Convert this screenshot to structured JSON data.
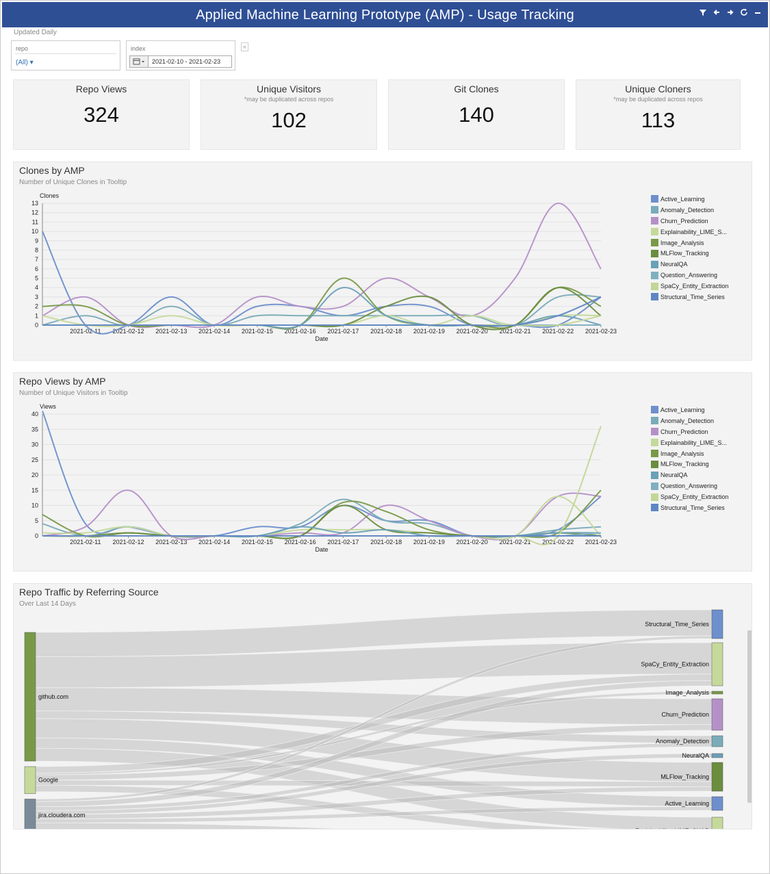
{
  "header": {
    "title": "Applied Machine Learning Prototype (AMP) - Usage Tracking"
  },
  "updated_note": "Updated Daily",
  "filters": {
    "repo": {
      "label": "repo",
      "value": "(All)"
    },
    "index": {
      "label": "index",
      "value": "2021-02-10 - 2021-02-23"
    }
  },
  "kpis": [
    {
      "title": "Repo Views",
      "subtitle": "",
      "value": "324"
    },
    {
      "title": "Unique Visitors",
      "subtitle": "*may be duplicated across repos",
      "value": "102"
    },
    {
      "title": "Git Clones",
      "subtitle": "",
      "value": "140"
    },
    {
      "title": "Unique Cloners",
      "subtitle": "*may be duplicated across repos",
      "value": "113"
    }
  ],
  "colors": {
    "Active_Learning": "#6d8fcc",
    "Anomaly_Detection": "#7aabb9",
    "Churn_Prediction": "#b590c8",
    "Explainability": "#c5d99a",
    "Image_Analysis": "#789a48",
    "MLFlow_Tracking": "#6a8d3e",
    "NeuralQA": "#6aa0b8",
    "Question_Answering": "#80b0c0",
    "SpaCy_Entity_Extraction": "#c2d696",
    "Structural_Time_Series": "#5f86c4"
  },
  "legend": [
    {
      "key": "Active_Learning",
      "label": "Active_Learning"
    },
    {
      "key": "Anomaly_Detection",
      "label": "Anomaly_Detection"
    },
    {
      "key": "Churn_Prediction",
      "label": "Churn_Prediction"
    },
    {
      "key": "Explainability",
      "label": "Explainability_LIME_S..."
    },
    {
      "key": "Image_Analysis",
      "label": "Image_Analysis"
    },
    {
      "key": "MLFlow_Tracking",
      "label": "MLFlow_Tracking"
    },
    {
      "key": "NeuralQA",
      "label": "NeuralQA"
    },
    {
      "key": "Question_Answering",
      "label": "Question_Answering"
    },
    {
      "key": "SpaCy_Entity_Extraction",
      "label": "SpaCy_Entity_Extraction"
    },
    {
      "key": "Structural_Time_Series",
      "label": "Structural_Time_Series"
    }
  ],
  "chart_data": [
    {
      "type": "line",
      "title": "Clones by AMP",
      "subtitle": "Number of Unique Clones in Tooltip",
      "xlabel": "Date",
      "ylabel": "Clones",
      "ylim": [
        0,
        13
      ],
      "yticks": [
        0,
        1,
        2,
        3,
        4,
        5,
        6,
        7,
        8,
        9,
        10,
        11,
        12,
        13
      ],
      "x": [
        "2021-02-10",
        "2021-02-11",
        "2021-02-12",
        "2021-02-13",
        "2021-02-14",
        "2021-02-15",
        "2021-02-16",
        "2021-02-17",
        "2021-02-18",
        "2021-02-19",
        "2021-02-20",
        "2021-02-21",
        "2021-02-22",
        "2021-02-23"
      ],
      "xticklabels": [
        "2021-02-11",
        "2021-02-12",
        "2021-02-13",
        "2021-02-14",
        "2021-02-15",
        "2021-02-16",
        "2021-02-17",
        "2021-02-18",
        "2021-02-19",
        "2021-02-20",
        "2021-02-21",
        "2021-02-22",
        "2021-02-23"
      ],
      "series": [
        {
          "name": "Active_Learning",
          "values": [
            10,
            0,
            0,
            3,
            0,
            2,
            2,
            1,
            2,
            2,
            0,
            0,
            0,
            3
          ]
        },
        {
          "name": "Anomaly_Detection",
          "values": [
            0,
            1,
            0,
            2,
            0,
            1,
            1,
            1,
            1,
            1,
            1,
            0,
            3,
            3
          ]
        },
        {
          "name": "Churn_Prediction",
          "values": [
            1,
            3,
            0,
            0,
            0,
            3,
            2,
            2,
            5,
            3,
            1,
            5,
            13,
            6
          ]
        },
        {
          "name": "Explainability",
          "values": [
            1,
            0,
            0,
            1,
            0,
            0,
            0,
            0,
            1,
            0,
            1,
            0,
            1,
            1
          ]
        },
        {
          "name": "Image_Analysis",
          "values": [
            2,
            2,
            0,
            0,
            0,
            0,
            0,
            5,
            1,
            0,
            0,
            0,
            4,
            2
          ]
        },
        {
          "name": "MLFlow_Tracking",
          "values": [
            0,
            0,
            0,
            0,
            0,
            0,
            0,
            0,
            2,
            3,
            0,
            0,
            4,
            1
          ]
        },
        {
          "name": "NeuralQA",
          "values": [
            0,
            0,
            0,
            0,
            0,
            0,
            0,
            4,
            1,
            0,
            0,
            0,
            1,
            0
          ]
        },
        {
          "name": "Question_Answering",
          "values": [
            0,
            0,
            0,
            0,
            0,
            0,
            0,
            0,
            0,
            0,
            0,
            0,
            0,
            0
          ]
        },
        {
          "name": "SpaCy_Entity_Extraction",
          "values": [
            0,
            0,
            0,
            0,
            0,
            0,
            0,
            0,
            0,
            0,
            0,
            0,
            0,
            1
          ]
        },
        {
          "name": "Structural_Time_Series",
          "values": [
            0,
            0,
            0,
            0,
            0,
            0,
            0,
            0,
            0,
            0,
            0,
            0,
            1,
            3
          ]
        }
      ]
    },
    {
      "type": "line",
      "title": "Repo Views by AMP",
      "subtitle": "Number of Unique Visitors in Tooltip",
      "xlabel": "Date",
      "ylabel": "Views",
      "ylim": [
        0,
        40
      ],
      "yticks": [
        0,
        5,
        10,
        15,
        20,
        25,
        30,
        35,
        40
      ],
      "x": [
        "2021-02-10",
        "2021-02-11",
        "2021-02-12",
        "2021-02-13",
        "2021-02-14",
        "2021-02-15",
        "2021-02-16",
        "2021-02-17",
        "2021-02-18",
        "2021-02-19",
        "2021-02-20",
        "2021-02-21",
        "2021-02-22",
        "2021-02-23"
      ],
      "xticklabels": [
        "2021-02-11",
        "2021-02-12",
        "2021-02-13",
        "2021-02-14",
        "2021-02-15",
        "2021-02-16",
        "2021-02-17",
        "2021-02-18",
        "2021-02-19",
        "2021-02-20",
        "2021-02-21",
        "2021-02-22",
        "2021-02-23"
      ],
      "series": [
        {
          "name": "Active_Learning",
          "values": [
            41,
            4,
            3,
            0,
            0,
            3,
            3,
            10,
            5,
            5,
            0,
            0,
            2,
            13
          ]
        },
        {
          "name": "Anomaly_Detection",
          "values": [
            4,
            0,
            3,
            0,
            0,
            0,
            4,
            12,
            5,
            4,
            0,
            0,
            2,
            3
          ]
        },
        {
          "name": "Churn_Prediction",
          "values": [
            0,
            3,
            15,
            0,
            0,
            0,
            1,
            1,
            10,
            5,
            0,
            0,
            13,
            13
          ]
        },
        {
          "name": "Explainability",
          "values": [
            1,
            1,
            3,
            0,
            0,
            0,
            2,
            2,
            2,
            1,
            0,
            0,
            13,
            0
          ]
        },
        {
          "name": "Image_Analysis",
          "values": [
            7,
            0,
            1,
            0,
            0,
            0,
            0,
            11,
            8,
            2,
            0,
            0,
            1,
            15
          ]
        },
        {
          "name": "MLFlow_Tracking",
          "values": [
            0,
            0,
            1,
            0,
            0,
            0,
            0,
            10,
            2,
            1,
            0,
            0,
            1,
            0
          ]
        },
        {
          "name": "NeuralQA",
          "values": [
            0,
            0,
            0,
            0,
            0,
            0,
            3,
            1,
            2,
            0,
            0,
            0,
            1,
            1
          ]
        },
        {
          "name": "Question_Answering",
          "values": [
            0,
            0,
            0,
            0,
            0,
            0,
            0,
            0,
            0,
            0,
            0,
            0,
            0,
            1
          ]
        },
        {
          "name": "SpaCy_Entity_Extraction",
          "values": [
            0,
            0,
            0,
            0,
            0,
            0,
            0,
            0,
            0,
            0,
            0,
            0,
            0,
            36
          ]
        },
        {
          "name": "Structural_Time_Series",
          "values": [
            0,
            0,
            0,
            0,
            0,
            0,
            0,
            0,
            0,
            0,
            0,
            0,
            0,
            0
          ]
        }
      ]
    }
  ],
  "sankey": {
    "title": "Repo Traffic by Referring Source",
    "subtitle": "Over Last 14 Days",
    "sources": [
      {
        "name": "github.com",
        "color": "#789a48",
        "value": 200
      },
      {
        "name": "Google",
        "color": "#c5d99a",
        "value": 42
      },
      {
        "name": "jira.cloudera.com",
        "color": "#7a8a99",
        "value": 50
      }
    ],
    "targets": [
      {
        "name": "Structural_Time_Series",
        "color": "#6d8fcc",
        "value": 42
      },
      {
        "name": "SpaCy_Entity_Extraction",
        "color": "#c5d99a",
        "value": 66
      },
      {
        "name": "Image_Analysis",
        "color": "#789a48",
        "value": 4
      },
      {
        "name": "Churn_Prediction",
        "color": "#b590c8",
        "value": 48
      },
      {
        "name": "Anomaly_Detection",
        "color": "#7aabb9",
        "value": 18
      },
      {
        "name": "NeuralQA",
        "color": "#6aa0b8",
        "value": 6
      },
      {
        "name": "MLFlow_Tracking",
        "color": "#6a8d3e",
        "value": 45
      },
      {
        "name": "Active_Learning",
        "color": "#6d8fcc",
        "value": 22
      },
      {
        "name": "Explainability_LIME_SHAP",
        "color": "#c5d99a",
        "value": 40
      }
    ],
    "links": [
      {
        "source": 0,
        "target": 0,
        "value": 38
      },
      {
        "source": 0,
        "target": 1,
        "value": 48
      },
      {
        "source": 0,
        "target": 3,
        "value": 36
      },
      {
        "source": 0,
        "target": 4,
        "value": 12
      },
      {
        "source": 0,
        "target": 6,
        "value": 30
      },
      {
        "source": 0,
        "target": 7,
        "value": 16
      },
      {
        "source": 0,
        "target": 8,
        "value": 20
      },
      {
        "source": 1,
        "target": 1,
        "value": 10
      },
      {
        "source": 1,
        "target": 2,
        "value": 3
      },
      {
        "source": 1,
        "target": 3,
        "value": 8
      },
      {
        "source": 1,
        "target": 6,
        "value": 8
      },
      {
        "source": 1,
        "target": 8,
        "value": 10
      },
      {
        "source": 2,
        "target": 0,
        "value": 4
      },
      {
        "source": 2,
        "target": 1,
        "value": 8
      },
      {
        "source": 2,
        "target": 4,
        "value": 6
      },
      {
        "source": 2,
        "target": 5,
        "value": 6
      },
      {
        "source": 2,
        "target": 6,
        "value": 7
      },
      {
        "source": 2,
        "target": 7,
        "value": 6
      },
      {
        "source": 2,
        "target": 8,
        "value": 10
      }
    ]
  }
}
